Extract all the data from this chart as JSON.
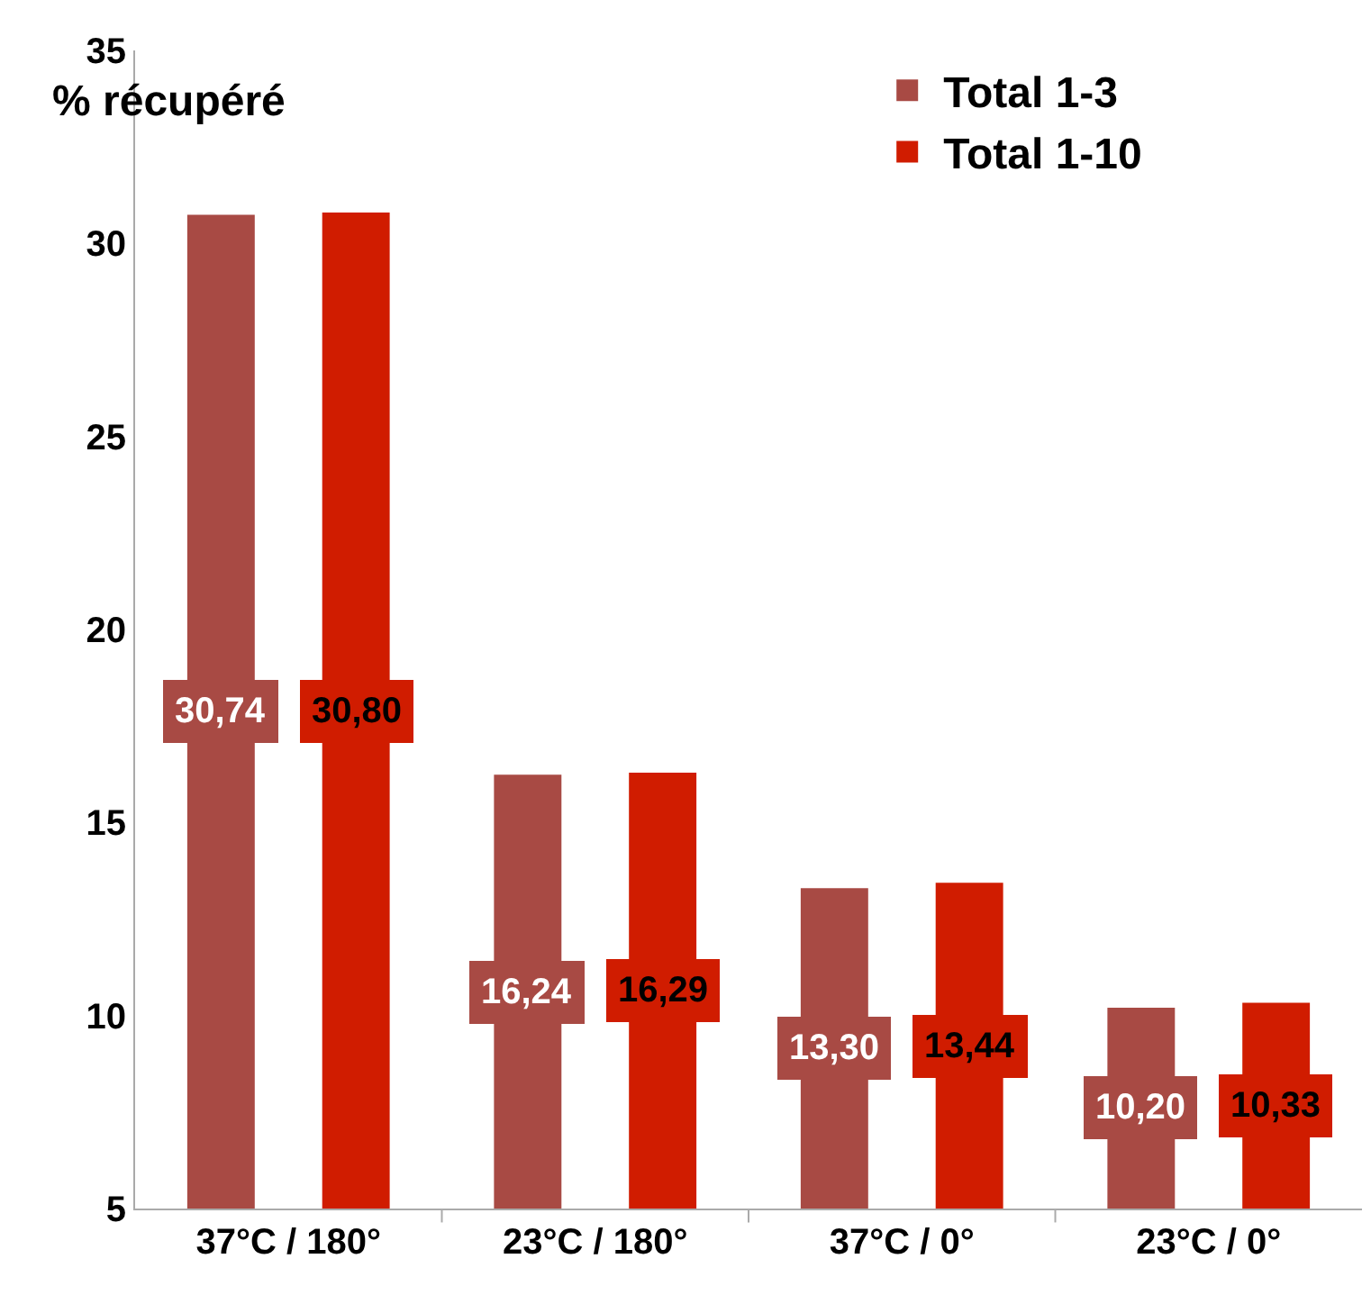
{
  "chart_data": {
    "type": "bar",
    "ylabel": "% récupéré",
    "categories": [
      "37°C / 180°",
      "23°C / 180°",
      "37°C / 0°",
      "23°C / 0°"
    ],
    "series": [
      {
        "name": "Total 1-3",
        "color": "#a84a44",
        "values": [
          30.74,
          16.24,
          13.3,
          10.2
        ],
        "value_labels": [
          "30,74",
          "16,24",
          "13,30",
          "10,20"
        ]
      },
      {
        "name": "Total 1-10",
        "color": "#d01c00",
        "values": [
          30.8,
          16.29,
          13.44,
          10.33
        ],
        "value_labels": [
          "30,80",
          "16,29",
          "13,44",
          "10,33"
        ]
      }
    ],
    "ylim": [
      5,
      35
    ],
    "yticks": [
      5,
      10,
      15,
      20,
      25,
      30,
      35
    ],
    "legend": "top right"
  }
}
